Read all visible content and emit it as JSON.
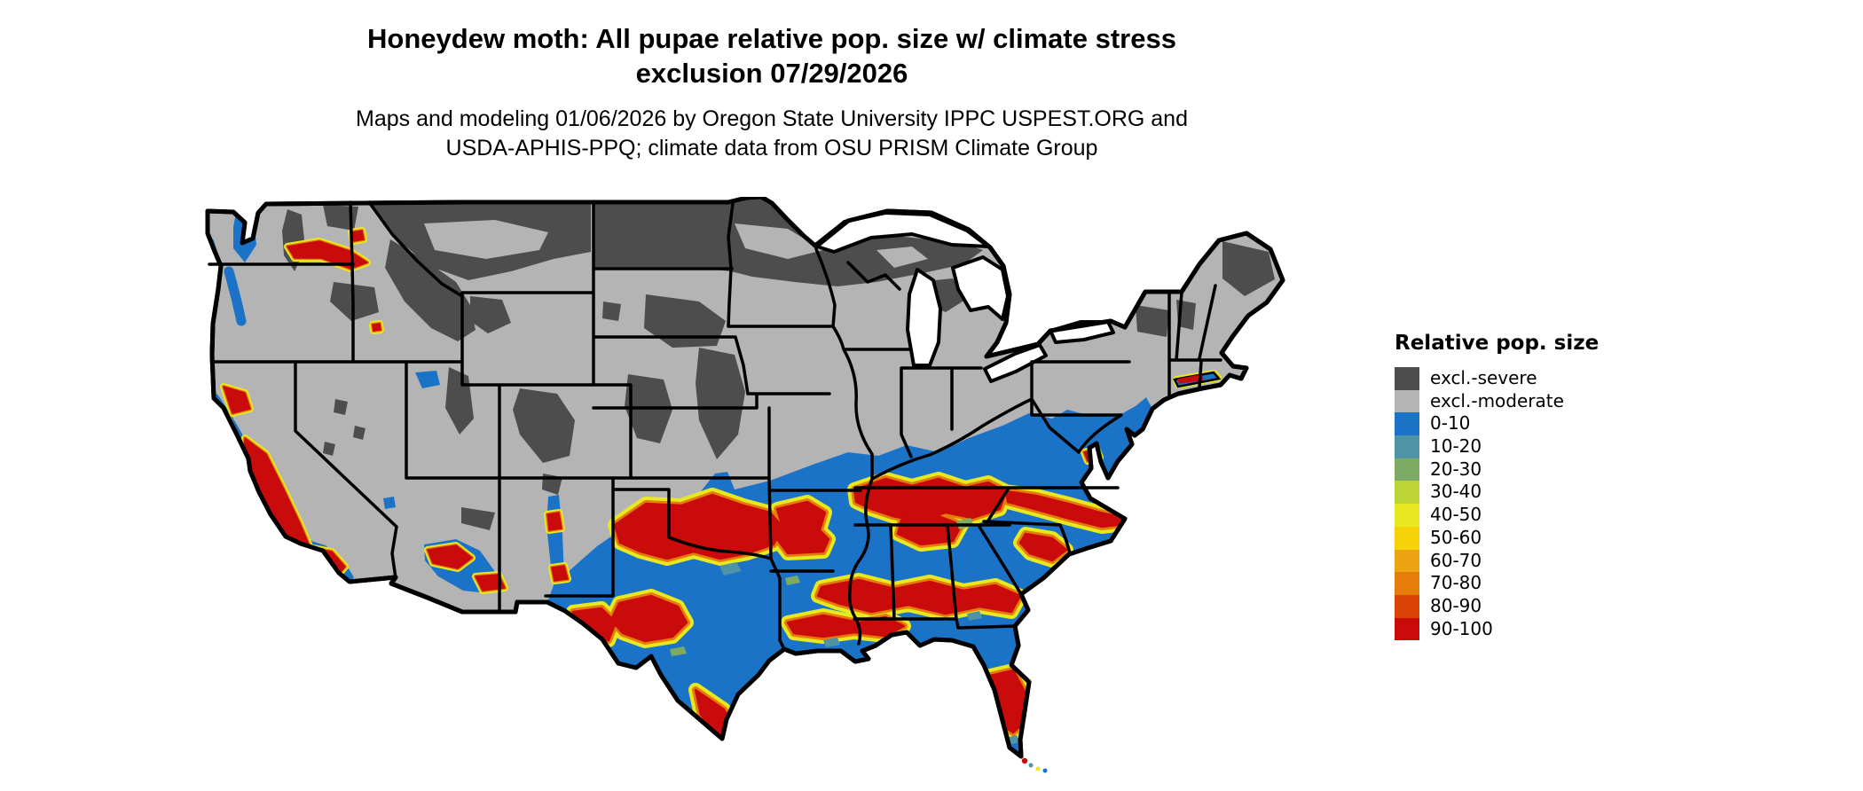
{
  "header": {
    "title_line1": "Honeydew moth: All pupae relative pop. size w/ climate stress",
    "title_line2": "exclusion 07/29/2026",
    "subtitle_line1": "Maps and modeling 01/06/2026 by Oregon State University IPPC USPEST.ORG and",
    "subtitle_line2": "USDA-APHIS-PPQ; climate data from OSU PRISM Climate Group"
  },
  "map": {
    "description": "Contiguous United States raster map of honeydew moth all-pupae relative population size with climate stress exclusion; severe exclusion (dark gray) across the northern tier and high mountains, moderate exclusion (light gray) across the central U.S., low relative population (blue) across the South, West Coast and Atlantic coast, and high relative population bands (yellow-orange-red) across the southern Plains, mid-South, Carolinas, Gulf Coast, central Florida and California foothills",
    "base_color": "#b4b4b4",
    "border_color": "#000000",
    "water_color": "#ffffff"
  },
  "legend": {
    "title": "Relative pop. size",
    "items": [
      {
        "label": "excl.-severe",
        "color": "#4d4d4d"
      },
      {
        "label": "excl.-moderate",
        "color": "#b4b4b4"
      },
      {
        "label": "0-10",
        "color": "#1b73c8"
      },
      {
        "label": "10-20",
        "color": "#4e93a6"
      },
      {
        "label": "20-30",
        "color": "#7dab63"
      },
      {
        "label": "30-40",
        "color": "#bcd435"
      },
      {
        "label": "40-50",
        "color": "#e8e821"
      },
      {
        "label": "50-60",
        "color": "#f6d20b"
      },
      {
        "label": "60-70",
        "color": "#eda413"
      },
      {
        "label": "70-80",
        "color": "#e67d0a"
      },
      {
        "label": "80-90",
        "color": "#da4206"
      },
      {
        "label": "90-100",
        "color": "#c90b0b"
      }
    ]
  }
}
